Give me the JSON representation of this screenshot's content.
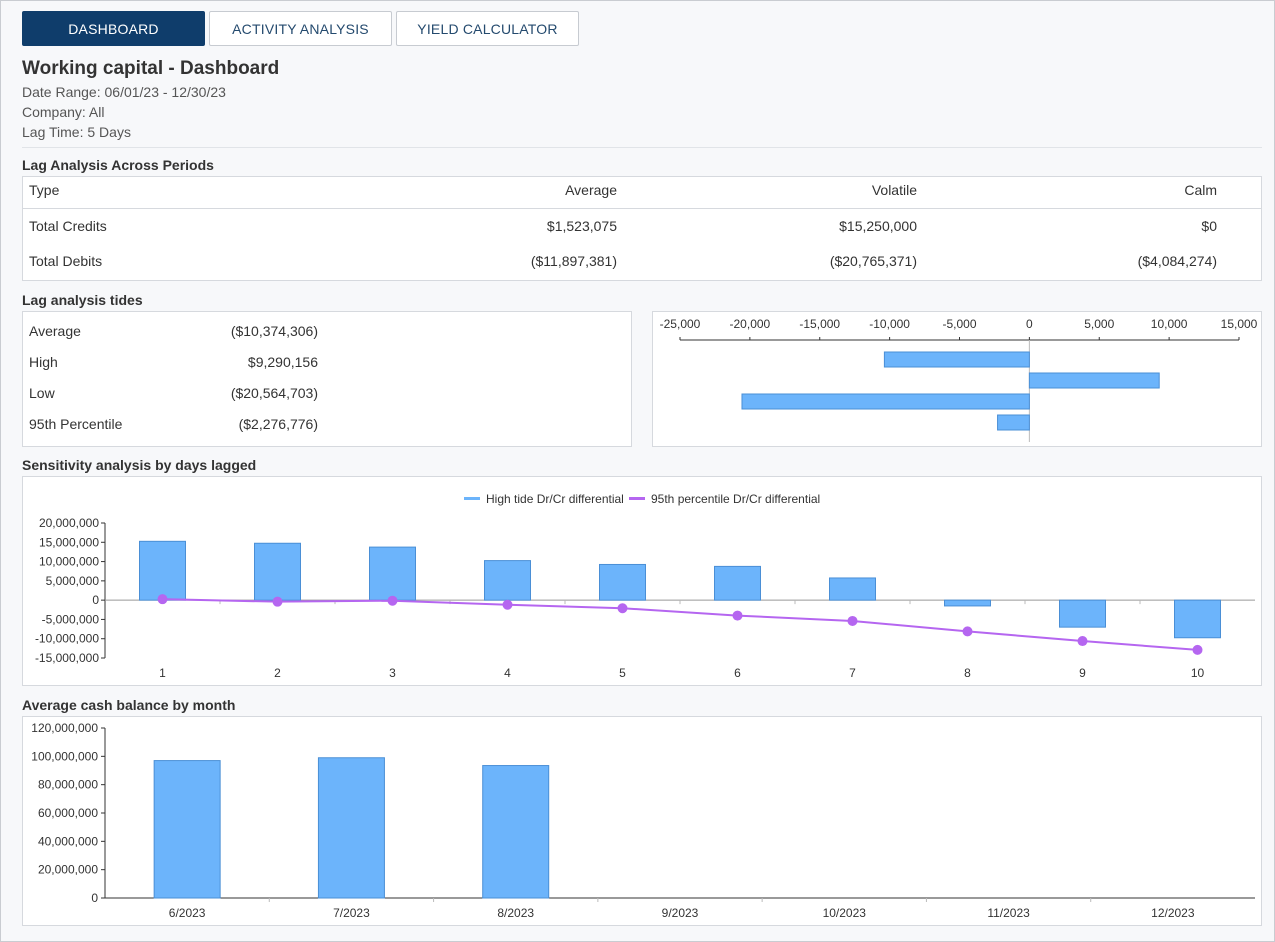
{
  "tabs": [
    {
      "label": "DASHBOARD",
      "active": true
    },
    {
      "label": "ACTIVITY ANALYSIS",
      "active": false
    },
    {
      "label": "YIELD CALCULATOR",
      "active": false
    }
  ],
  "header": {
    "title": "Working capital - Dashboard",
    "date_range": "Date Range: 06/01/23 - 12/30/23",
    "company": "Company: All",
    "lag_time": "Lag Time: 5 Days"
  },
  "lag_periods": {
    "title": "Lag Analysis Across Periods",
    "columns": [
      "Type",
      "Average",
      "Volatile",
      "Calm"
    ],
    "rows": [
      [
        "Total Credits",
        "$1,523,075",
        "$15,250,000",
        "$0"
      ],
      [
        "Total Debits",
        "($11,897,381)",
        "($20,765,371)",
        "($4,084,274)"
      ]
    ]
  },
  "tides": {
    "title": "Lag analysis tides",
    "rows": [
      {
        "label": "Average",
        "value": "($10,374,306)"
      },
      {
        "label": "High",
        "value": "$9,290,156"
      },
      {
        "label": "Low",
        "value": "($20,564,703)"
      },
      {
        "label": "95th Percentile",
        "value": "($2,276,776)"
      }
    ]
  },
  "colors": {
    "bar": "#6cb4fb",
    "bar_stroke": "#4a8fd6",
    "line": "#b566f0"
  },
  "chart_data": [
    {
      "type": "bar",
      "orientation": "horizontal",
      "categories": [
        "Average",
        "High",
        "Low",
        "95th Percentile"
      ],
      "values": [
        -10374306,
        9290156,
        -20564703,
        -2276776
      ],
      "xlim": [
        -25000,
        15000
      ],
      "tick_values": [
        -25000,
        -20000,
        -15000,
        -10000,
        -5000,
        0,
        5000,
        10000,
        15000
      ],
      "tick_labels": [
        "-25,000",
        "-20,000",
        "-15,000",
        "-10,000",
        "-5,000",
        "0",
        "5,000",
        "10,000",
        "15,000"
      ],
      "axis_scale": 1000,
      "legend": "none"
    },
    {
      "type": "bar",
      "title": "Sensitivity analysis by days lagged",
      "categories": [
        "1",
        "2",
        "3",
        "4",
        "5",
        "6",
        "7",
        "8",
        "9",
        "10"
      ],
      "series": [
        {
          "name": "High tide Dr/Cr differential",
          "type": "bar",
          "values": [
            15250000,
            14750000,
            13750000,
            10250000,
            9250000,
            8750000,
            5750000,
            -1500000,
            -7000000,
            -9750000
          ]
        },
        {
          "name": "95th percentile Dr/Cr differential",
          "type": "line",
          "values": [
            250000,
            -400000,
            -150000,
            -1200000,
            -2100000,
            -4000000,
            -5400000,
            -8100000,
            -10600000,
            -12900000
          ]
        }
      ],
      "ylim": [
        -15000000,
        20000000
      ],
      "y_ticks": [
        20000000,
        15000000,
        10000000,
        5000000,
        0,
        -5000000,
        -10000000,
        -15000000
      ],
      "y_tick_labels": [
        "20,000,000",
        "15,000,000",
        "10,000,000",
        "5,000,000",
        "0",
        "-5,000,000",
        "-10,000,000",
        "-15,000,000"
      ],
      "legend": "top-center"
    },
    {
      "type": "bar",
      "title": "Average cash balance by month",
      "categories": [
        "6/2023",
        "7/2023",
        "8/2023",
        "9/2023",
        "10/2023",
        "11/2023",
        "12/2023"
      ],
      "values": [
        97000000,
        99000000,
        93500000,
        0,
        0,
        0,
        0
      ],
      "ylim": [
        0,
        120000000
      ],
      "y_ticks": [
        120000000,
        100000000,
        80000000,
        60000000,
        40000000,
        20000000,
        0
      ],
      "y_tick_labels": [
        "120,000,000",
        "100,000,000",
        "80,000,000",
        "60,000,000",
        "40,000,000",
        "20,000,000",
        "0"
      ],
      "legend": "none"
    }
  ]
}
